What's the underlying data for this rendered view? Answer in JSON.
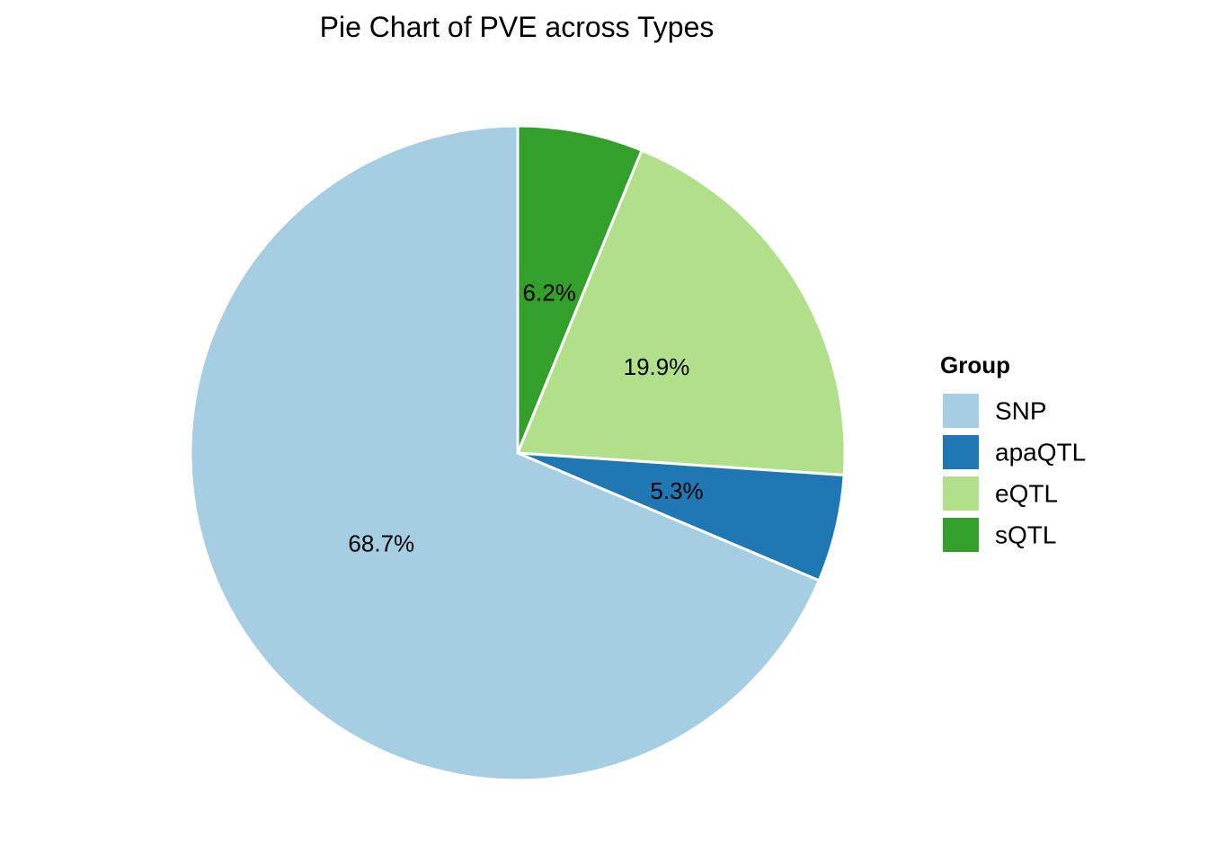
{
  "chart_data": {
    "type": "pie",
    "title": "Pie Chart of PVE across Types",
    "legend_title": "Group",
    "legend_position": "right",
    "slices_start": "sQTL",
    "direction": "clockwise",
    "slices": [
      {
        "name": "sQTL",
        "value": 6.2,
        "label": "6.2%",
        "color": "#33a02c"
      },
      {
        "name": "eQTL",
        "value": 19.9,
        "label": "19.9%",
        "color": "#b2df8a"
      },
      {
        "name": "apaQTL",
        "value": 5.3,
        "label": "5.3%",
        "color": "#1f78b4"
      },
      {
        "name": "SNP",
        "value": 68.7,
        "label": "68.7%",
        "color": "#a6cee3"
      }
    ],
    "legend": [
      {
        "name": "SNP",
        "color": "#a6cee3"
      },
      {
        "name": "apaQTL",
        "color": "#1f78b4"
      },
      {
        "name": "eQTL",
        "color": "#b2df8a"
      },
      {
        "name": "sQTL",
        "color": "#33a02c"
      }
    ]
  }
}
